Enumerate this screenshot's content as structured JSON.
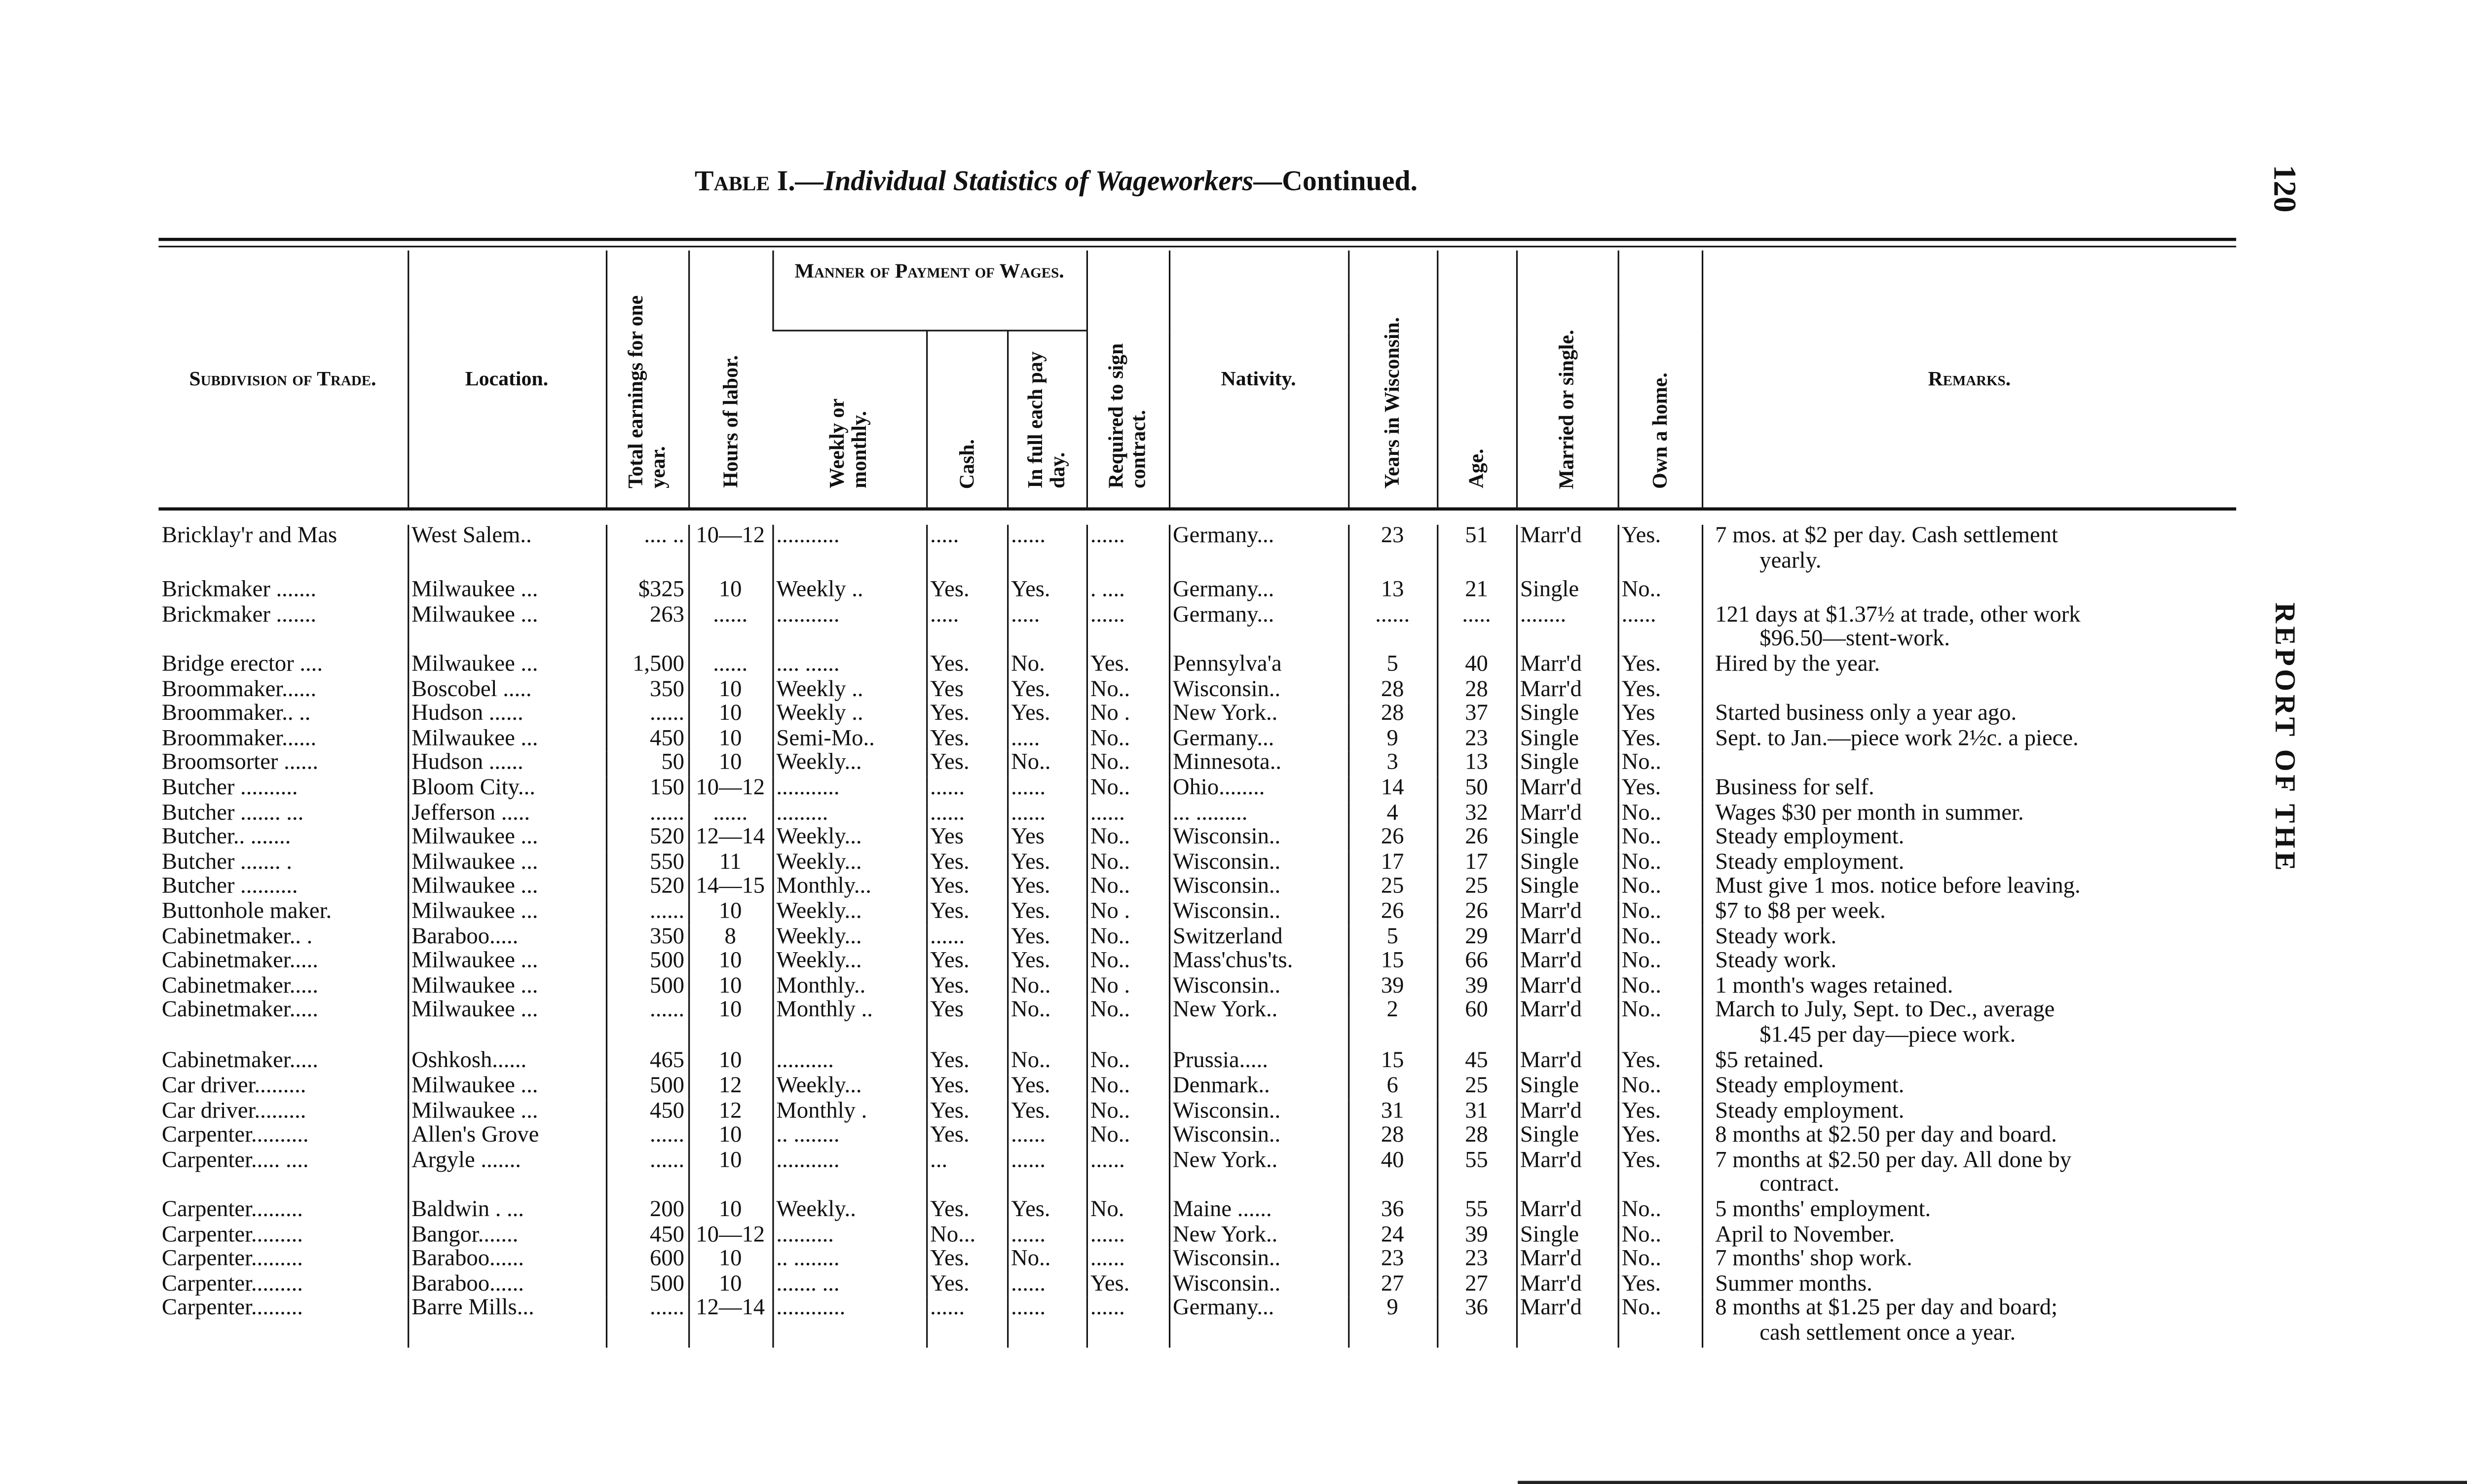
{
  "title": {
    "prefix": "Table I.",
    "italic": "—Individual Statistics of Wageworkers",
    "suffix": "—Continued."
  },
  "page_number": "120",
  "running_head": "REPORT OF THE",
  "headers": {
    "trade": "Subdivision of Trade.",
    "location": "Location.",
    "earnings": "Total earnings for one year.",
    "hours": "Hours of labor.",
    "payment_group": "Manner of Payment of Wages.",
    "weekly": "Weekly or monthly.",
    "cash": "Cash.",
    "full": "In full each pay day.",
    "contract": "Required to sign contract.",
    "nativity": "Nativity.",
    "years": "Years in Wisconsin.",
    "age": "Age.",
    "married": "Married or single.",
    "home": "Own a home.",
    "remarks": "Remarks."
  },
  "rows": [
    [
      "Bricklay'r and Mas",
      "West Salem..",
      ".... ..",
      "10—12",
      "...........",
      ".....",
      "......",
      "......",
      "Germany...",
      "23",
      "51",
      "Marr'd",
      "Yes.",
      "7 mos. at $2 per day.  Cash settlement",
      "yearly."
    ],
    [
      "Brickmaker .......",
      "Milwaukee ...",
      "$325",
      "10",
      "Weekly ..",
      "Yes.",
      "Yes.",
      ". ....",
      "Germany...",
      "13",
      "21",
      "Single",
      "No..",
      "",
      ""
    ],
    [
      "Brickmaker .......",
      "Milwaukee ...",
      "263",
      "......",
      "...........",
      ".....",
      ".....",
      "......",
      "Germany...",
      "......",
      ".....",
      "........",
      "......",
      "121 days at $1.37½ at trade, other work",
      "$96.50—stent-work."
    ],
    [
      "Bridge erector ....",
      "Milwaukee ...",
      "1,500",
      "......",
      ".... ......",
      "Yes.",
      "No.",
      "Yes.",
      "Pennsylva'a",
      "5",
      "40",
      "Marr'd",
      "Yes.",
      "Hired by the year.",
      ""
    ],
    [
      "Broommaker......",
      "Boscobel .....",
      "350",
      "10",
      "Weekly ..",
      "Yes",
      "Yes.",
      "No..",
      "Wisconsin..",
      "28",
      "28",
      "Marr'd",
      "Yes.",
      "",
      ""
    ],
    [
      "Broommaker.. ..",
      "Hudson ......",
      "......",
      "10",
      "Weekly ..",
      "Yes.",
      "Yes.",
      "No .",
      "New York..",
      "28",
      "37",
      "Single",
      "Yes",
      "Started business only a year ago.",
      ""
    ],
    [
      "Broommaker......",
      "Milwaukee ...",
      "450",
      "10",
      "Semi-Mo..",
      "Yes.",
      ".....",
      "No..",
      "Germany...",
      "9",
      "23",
      "Single",
      "Yes.",
      "Sept. to Jan.—piece work 2½c. a piece.",
      ""
    ],
    [
      "Broomsorter ......",
      "Hudson ......",
      "50",
      "10",
      "Weekly...",
      "Yes.",
      "No..",
      "No..",
      "Minnesota..",
      "3",
      "13",
      "Single",
      "No..",
      "",
      ""
    ],
    [
      "Butcher ..........",
      "Bloom City...",
      "150",
      "10—12",
      "...........",
      "......",
      "......",
      "No..",
      "Ohio........",
      "14",
      "50",
      "Marr'd",
      "Yes.",
      "Business for self.",
      ""
    ],
    [
      "Butcher ....... ...",
      "Jefferson .....",
      "......",
      "......",
      ".........",
      "......",
      "......",
      "......",
      "... .........",
      "4",
      "32",
      "Marr'd",
      "No..",
      "Wages $30 per month in summer.",
      ""
    ],
    [
      "Butcher.. .......",
      "Milwaukee ...",
      "520",
      "12—14",
      "Weekly...",
      "Yes",
      "Yes",
      "No..",
      "Wisconsin..",
      "26",
      "26",
      "Single",
      "No..",
      "Steady employment.",
      ""
    ],
    [
      "Butcher ....... .",
      "Milwaukee ...",
      "550",
      "11",
      "Weekly...",
      "Yes.",
      "Yes.",
      "No..",
      "Wisconsin..",
      "17",
      "17",
      "Single",
      "No..",
      "Steady employment.",
      ""
    ],
    [
      "Butcher ..........",
      "Milwaukee ...",
      "520",
      "14—15",
      "Monthly...",
      "Yes.",
      "Yes.",
      "No..",
      "Wisconsin..",
      "25",
      "25",
      "Single",
      "No..",
      "Must give 1 mos. notice before leaving.",
      ""
    ],
    [
      "Buttonhole maker.",
      "Milwaukee ...",
      "......",
      "10",
      "Weekly...",
      "Yes.",
      "Yes.",
      "No .",
      "Wisconsin..",
      "26",
      "26",
      "Marr'd",
      "No..",
      "$7 to $8 per week.",
      ""
    ],
    [
      "Cabinetmaker.. .",
      "Baraboo.....",
      "350",
      "8",
      "Weekly...",
      "......",
      "Yes.",
      "No..",
      "Switzerland",
      "5",
      "29",
      "Marr'd",
      "No..",
      "Steady work.",
      ""
    ],
    [
      "Cabinetmaker.....",
      "Milwaukee ...",
      "500",
      "10",
      "Weekly...",
      "Yes.",
      "Yes.",
      "No..",
      "Mass'chus'ts.",
      "15",
      "66",
      "Marr'd",
      "No..",
      "Steady work.",
      ""
    ],
    [
      "Cabinetmaker.....",
      "Milwaukee ...",
      "500",
      "10",
      "Monthly..",
      "Yes.",
      "No..",
      "No .",
      "Wisconsin..",
      "39",
      "39",
      "Marr'd",
      "No..",
      "1 month's wages retained.",
      ""
    ],
    [
      "Cabinetmaker.....",
      "Milwaukee ...",
      "......",
      "10",
      "Monthly ..",
      "Yes",
      "No..",
      "No..",
      "New York..",
      "2",
      "60",
      "Marr'd",
      "No..",
      "March to July, Sept. to Dec., average",
      "$1.45 per day—piece work."
    ],
    [
      "Cabinetmaker.....",
      "Oshkosh......",
      "465",
      "10",
      "..........",
      "Yes.",
      "No..",
      "No..",
      "Prussia.....",
      "15",
      "45",
      "Marr'd",
      "Yes.",
      "$5 retained.",
      ""
    ],
    [
      "Car driver.........",
      "Milwaukee ...",
      "500",
      "12",
      "Weekly...",
      "Yes.",
      "Yes.",
      "No..",
      "Denmark..",
      "6",
      "25",
      "Single",
      "No..",
      "Steady employment.",
      ""
    ],
    [
      "Car driver.........",
      "Milwaukee ...",
      "450",
      "12",
      "Monthly .",
      "Yes.",
      "Yes.",
      "No..",
      "Wisconsin..",
      "31",
      "31",
      "Marr'd",
      "Yes.",
      "Steady employment.",
      ""
    ],
    [
      "Carpenter..........",
      "Allen's Grove",
      "......",
      "10",
      ".. ........",
      "Yes.",
      "......",
      "No..",
      "Wisconsin..",
      "28",
      "28",
      "Single",
      "Yes.",
      "8 months at $2.50 per day and board.",
      ""
    ],
    [
      "Carpenter..... ....",
      "Argyle .......",
      "......",
      "10",
      "...........",
      "...",
      "......",
      "......",
      "New York..",
      "40",
      "55",
      "Marr'd",
      "Yes.",
      "7 months at $2.50 per day.  All done by",
      "contract."
    ],
    [
      "Carpenter.........",
      "Baldwin . ...",
      "200",
      "10",
      "Weekly..",
      "Yes.",
      "Yes.",
      "No.",
      "Maine ......",
      "36",
      "55",
      "Marr'd",
      "No..",
      "5 months' employment.",
      ""
    ],
    [
      "Carpenter.........",
      "Bangor.......",
      "450",
      "10—12",
      "..........",
      "No...",
      "......",
      "......",
      "New York..",
      "24",
      "39",
      "Single",
      "No..",
      "April to November.",
      ""
    ],
    [
      "Carpenter.........",
      "Baraboo......",
      "600",
      "10",
      ".. ........",
      "Yes.",
      "No..",
      "......",
      "Wisconsin..",
      "23",
      "23",
      "Marr'd",
      "No..",
      "7 months' shop work.",
      ""
    ],
    [
      "Carpenter.........",
      "Baraboo......",
      "500",
      "10",
      "....... ...",
      "Yes.",
      "......",
      "Yes.",
      "Wisconsin..",
      "27",
      "27",
      "Marr'd",
      "Yes.",
      "Summer months.",
      ""
    ],
    [
      "Carpenter.........",
      "Barre Mills...",
      "......",
      "12—14",
      "............",
      "......",
      "......",
      "......",
      "Germany...",
      "9",
      "36",
      "Marr'd",
      "No..",
      "8 months at $1.25 per day and board;",
      "cash settlement once a year."
    ]
  ]
}
